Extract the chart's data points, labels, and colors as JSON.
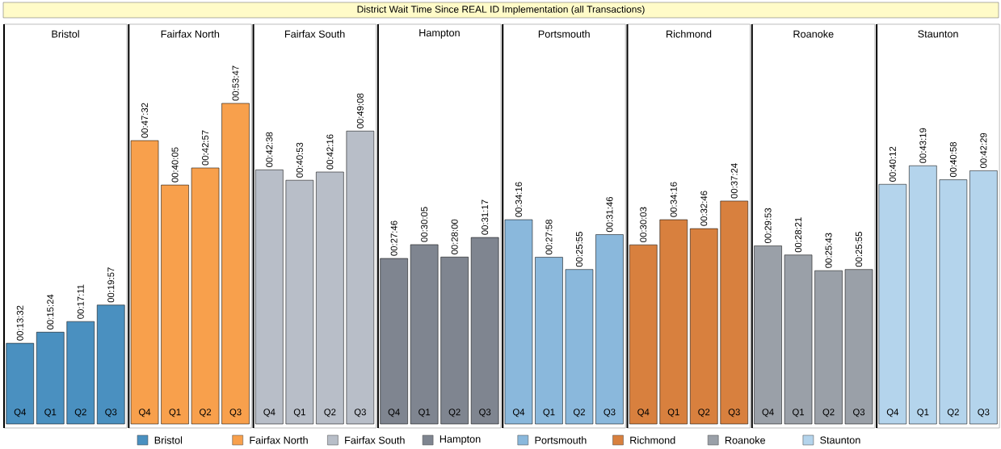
{
  "chart_data": [
    {
      "type": "other",
      "title": "District Wait Time Since REAL ID Implementation (all Transactions)"
    },
    {
      "type": "bar",
      "title": "Bristol",
      "categories": [
        "Q4",
        "Q1",
        "Q2",
        "Q3"
      ],
      "legend": "bottom",
      "tick_labels": "x",
      "series": [
        {
          "name": "Bristol",
          "color": "#4a90c0",
          "values": [
            812,
            924,
            1031,
            1197
          ],
          "value_labels": [
            "00:13:32",
            "00:15:24",
            "00:17:11",
            "00:19:57"
          ]
        }
      ]
    },
    {
      "type": "bar",
      "title": "Fairfax North",
      "categories": [
        "Q4",
        "Q1",
        "Q2",
        "Q3"
      ],
      "legend": "bottom",
      "tick_labels": "x",
      "series": [
        {
          "name": "Fairfax North",
          "color": "#f8a04c",
          "values": [
            2852,
            2405,
            2577,
            3227
          ],
          "value_labels": [
            "00:47:32",
            "00:40:05",
            "00:42:57",
            "00:53:47"
          ]
        }
      ]
    },
    {
      "type": "bar",
      "title": "Fairfax South",
      "categories": [
        "Q4",
        "Q1",
        "Q2",
        "Q3"
      ],
      "legend": "bottom",
      "tick_labels": "x",
      "series": [
        {
          "name": "Fairfax South",
          "color": "#b8bec8",
          "values": [
            2558,
            2453,
            2536,
            2948
          ],
          "value_labels": [
            "00:42:38",
            "00:40:53",
            "00:42:16",
            "00:49:08"
          ]
        }
      ]
    },
    {
      "type": "bar",
      "title": "Hampton",
      "categories": [
        "Q4",
        "Q1",
        "Q2",
        "Q3"
      ],
      "legend": "bottom",
      "tick_labels": "x",
      "series": [
        {
          "name": "Hampton",
          "color": "#7f8590",
          "values": [
            1666,
            1805,
            1680,
            1877
          ],
          "value_labels": [
            "00:27:46",
            "00:30:05",
            "00:28:00",
            "00:31:17"
          ]
        }
      ]
    },
    {
      "type": "bar",
      "title": "Portsmouth",
      "categories": [
        "Q4",
        "Q1",
        "Q2",
        "Q3"
      ],
      "legend": "bottom",
      "tick_labels": "x",
      "series": [
        {
          "name": "Portsmouth",
          "color": "#8ab8dc",
          "values": [
            2056,
            1678,
            1555,
            1906
          ],
          "value_labels": [
            "00:34:16",
            "00:27:58",
            "00:25:55",
            "00:31:46"
          ]
        }
      ]
    },
    {
      "type": "bar",
      "title": "Richmond",
      "categories": [
        "Q4",
        "Q1",
        "Q2",
        "Q3"
      ],
      "legend": "bottom",
      "tick_labels": "x",
      "series": [
        {
          "name": "Richmond",
          "color": "#d8803e",
          "values": [
            1803,
            2056,
            1966,
            2244
          ],
          "value_labels": [
            "00:30:03",
            "00:34:16",
            "00:32:46",
            "00:37:24"
          ]
        }
      ]
    },
    {
      "type": "bar",
      "title": "Roanoke",
      "categories": [
        "Q4",
        "Q1",
        "Q2",
        "Q3"
      ],
      "legend": "bottom",
      "tick_labels": "x",
      "series": [
        {
          "name": "Roanoke",
          "color": "#9aa0a8",
          "values": [
            1793,
            1701,
            1543,
            1555
          ],
          "value_labels": [
            "00:29:53",
            "00:28:21",
            "00:25:43",
            "00:25:55"
          ]
        }
      ]
    },
    {
      "type": "bar",
      "title": "Staunton",
      "categories": [
        "Q4",
        "Q1",
        "Q2",
        "Q3"
      ],
      "legend": "bottom",
      "tick_labels": "x",
      "series": [
        {
          "name": "Staunton",
          "color": "#b4d4ec",
          "values": [
            2412,
            2599,
            2458,
            2549
          ],
          "value_labels": [
            "00:40:12",
            "00:43:19",
            "00:40:58",
            "00:42:29"
          ]
        }
      ]
    }
  ]
}
